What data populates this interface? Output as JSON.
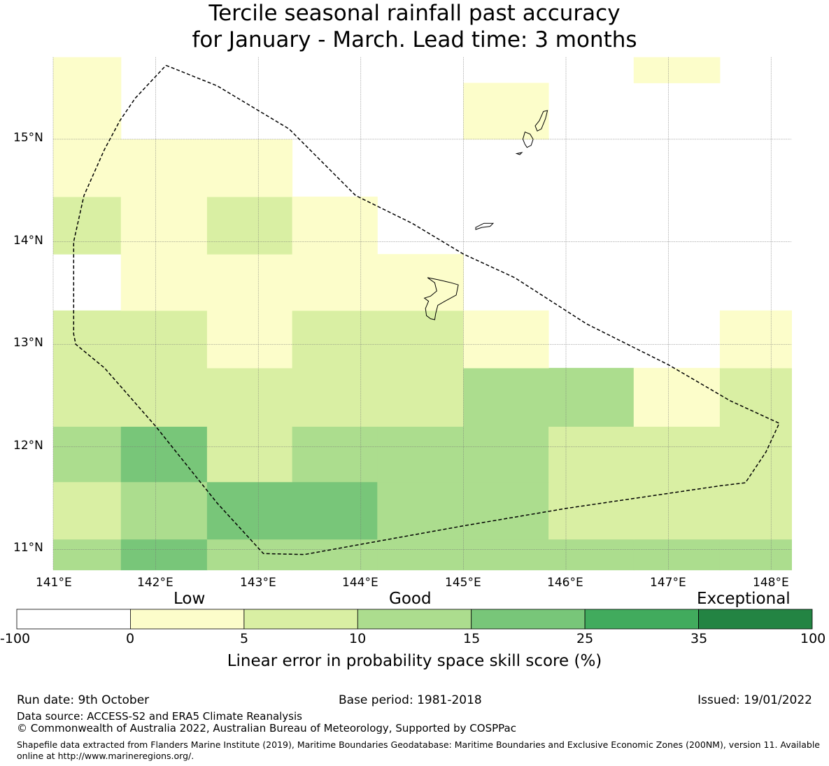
{
  "title": {
    "line1": "Tercile seasonal rainfall past accuracy",
    "line2": "for January - March. Lead time: 3 months"
  },
  "axes": {
    "lat_ticks": [
      "15°N",
      "14°N",
      "13°N",
      "12°N",
      "11°N"
    ],
    "lon_ticks": [
      "141°E",
      "142°E",
      "143°E",
      "144°E",
      "145°E",
      "146°E",
      "147°E",
      "148°E"
    ]
  },
  "map_data": {
    "lon_range": [
      141.0,
      148.2
    ],
    "lat_range": [
      10.8,
      15.8
    ],
    "grid_lon_edges": [
      141.0,
      141.66,
      142.5,
      143.33,
      144.16,
      145.0,
      145.83,
      146.66,
      147.5,
      148.2
    ],
    "grid_lat_edges": [
      10.8,
      11.1,
      11.66,
      12.2,
      12.77,
      13.33,
      13.88,
      14.44,
      15.0,
      15.55,
      15.8
    ],
    "bins": [
      -100,
      0,
      5,
      10,
      15,
      25,
      35,
      100
    ],
    "bin_colors": [
      "#ffffff",
      "#fcfdca",
      "#d9efa3",
      "#acdd8e",
      "#78c679",
      "#41ab5d",
      "#238443"
    ],
    "cell_classes": [
      [
        3,
        4,
        3,
        3,
        3,
        3,
        3,
        3,
        3
      ],
      [
        2,
        3,
        4,
        4,
        3,
        3,
        2,
        2,
        2
      ],
      [
        3,
        4,
        2,
        3,
        3,
        3,
        2,
        2,
        2
      ],
      [
        2,
        2,
        2,
        2,
        2,
        3,
        3,
        1,
        2
      ],
      [
        2,
        2,
        1,
        2,
        2,
        1,
        0,
        0,
        1
      ],
      [
        0,
        1,
        1,
        1,
        1,
        0,
        0,
        0,
        0
      ],
      [
        2,
        1,
        2,
        1,
        0,
        0,
        0,
        0,
        0
      ],
      [
        1,
        1,
        1,
        0,
        0,
        0,
        0,
        0,
        0
      ],
      [
        1,
        0,
        0,
        0,
        0,
        1,
        0,
        0,
        0
      ],
      [
        1,
        0,
        0,
        0,
        0,
        0,
        0,
        1,
        0
      ]
    ],
    "eez_boundary": [
      [
        142.1,
        15.72
      ],
      [
        142.6,
        15.52
      ],
      [
        143.3,
        15.1
      ],
      [
        143.95,
        14.45
      ],
      [
        144.5,
        14.18
      ],
      [
        145.0,
        13.88
      ],
      [
        145.5,
        13.65
      ],
      [
        146.2,
        13.2
      ],
      [
        147.0,
        12.8
      ],
      [
        147.6,
        12.45
      ],
      [
        148.08,
        12.23
      ],
      [
        147.95,
        11.95
      ],
      [
        147.75,
        11.65
      ],
      [
        147.5,
        11.62
      ],
      [
        146.0,
        11.4
      ],
      [
        145.0,
        11.23
      ],
      [
        144.0,
        11.05
      ],
      [
        143.45,
        10.95
      ],
      [
        143.05,
        10.96
      ],
      [
        142.6,
        11.45
      ],
      [
        142.0,
        12.2
      ],
      [
        141.5,
        12.77
      ],
      [
        141.22,
        13.0
      ],
      [
        141.2,
        13.1
      ],
      [
        141.2,
        13.5
      ],
      [
        141.2,
        14.0
      ],
      [
        141.3,
        14.45
      ],
      [
        141.5,
        14.9
      ],
      [
        141.65,
        15.18
      ],
      [
        141.8,
        15.4
      ],
      [
        142.1,
        15.72
      ]
    ],
    "islands": [
      {
        "name": "Guam",
        "outline": [
          [
            144.65,
            13.65
          ],
          [
            144.75,
            13.63
          ],
          [
            144.88,
            13.6
          ],
          [
            144.95,
            13.58
          ],
          [
            144.93,
            13.48
          ],
          [
            144.82,
            13.42
          ],
          [
            144.75,
            13.38
          ],
          [
            144.73,
            13.3
          ],
          [
            144.72,
            13.24
          ],
          [
            144.68,
            13.25
          ],
          [
            144.64,
            13.28
          ],
          [
            144.63,
            13.35
          ],
          [
            144.66,
            13.42
          ],
          [
            144.62,
            13.45
          ],
          [
            144.68,
            13.47
          ],
          [
            144.74,
            13.52
          ],
          [
            144.72,
            13.6
          ],
          [
            144.65,
            13.65
          ]
        ]
      },
      {
        "name": "Rota",
        "outline": [
          [
            145.12,
            14.14
          ],
          [
            145.2,
            14.18
          ],
          [
            145.29,
            14.18
          ],
          [
            145.26,
            14.15
          ],
          [
            145.18,
            14.14
          ],
          [
            145.12,
            14.12
          ]
        ]
      },
      {
        "name": "Tinian",
        "outline": [
          [
            145.6,
            15.07
          ],
          [
            145.65,
            15.05
          ],
          [
            145.68,
            15.0
          ],
          [
            145.66,
            14.94
          ],
          [
            145.62,
            14.92
          ],
          [
            145.6,
            14.95
          ],
          [
            145.58,
            15.0
          ],
          [
            145.6,
            15.07
          ]
        ]
      },
      {
        "name": "Aguijan",
        "outline": [
          [
            145.52,
            14.86
          ],
          [
            145.57,
            14.87
          ],
          [
            145.55,
            14.85
          ]
        ]
      },
      {
        "name": "Saipan",
        "outline": [
          [
            145.78,
            15.27
          ],
          [
            145.82,
            15.28
          ],
          [
            145.8,
            15.2
          ],
          [
            145.76,
            15.1
          ],
          [
            145.72,
            15.08
          ],
          [
            145.7,
            15.13
          ],
          [
            145.74,
            15.18
          ],
          [
            145.78,
            15.27
          ]
        ]
      }
    ]
  },
  "legend": {
    "category_labels": [
      "Low",
      "Good",
      "Exceptional"
    ],
    "tick_labels": [
      "-100",
      "0",
      "5",
      "10",
      "15",
      "25",
      "35",
      "100"
    ],
    "title": "Linear error in probability space skill score (%)"
  },
  "footer": {
    "run_date": "Run date: 9th October",
    "base_period": "Base period: 1981-2018",
    "issued": "Issued: 19/01/2022",
    "data_source": "Data source: ACCESS-S2 and ERA5 Climate Reanalysis",
    "copyright": "© Commonwealth of Australia 2022, Australian Bureau of Meteorology, Supported by COSPPac",
    "shapefile_note": "Shapefile data extracted from Flanders Marine Institute (2019), Maritime Boundaries Geodatabase: Maritime Boundaries and Exclusive Economic Zones (200NM), version 11. Available online at http://www.marineregions.org/."
  }
}
